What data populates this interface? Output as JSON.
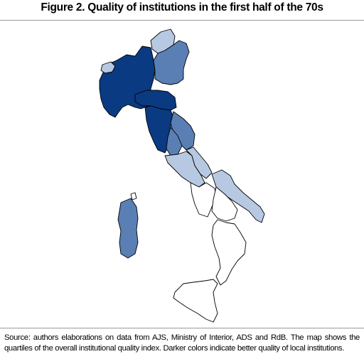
{
  "title": "Figure 2. Quality of institutions in the first half of the 70s",
  "caption": "Source: authors elaborations on data from AJS, Ministry of Interior, ADS and RdB. The map shows the quartiles of the overall institutional quality index. Darker colors indicate better quality of local institutions.",
  "quartile_colors": {
    "q1": "#ffffff",
    "q2": "#b7c9e2",
    "q3": "#5a7fb5",
    "q4": "#0a3a82"
  }
}
